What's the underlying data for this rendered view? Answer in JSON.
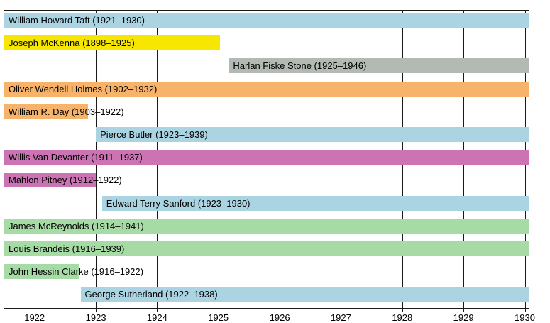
{
  "chart_data": {
    "type": "bar",
    "variant": "timeline-gantt",
    "title": "",
    "xlabel": "",
    "ylabel": "",
    "axis": {
      "xmin": 1921.513,
      "xmax": 1930.064,
      "ticks": [
        1922,
        1923,
        1924,
        1925,
        1926,
        1927,
        1928,
        1929,
        1930
      ],
      "grid": "vertical",
      "tick_label_color": "#000000",
      "line_color": "#1a1a1a"
    },
    "colors": {
      "blue": "#abd4e3",
      "yellow": "#f6e600",
      "gray": "#b3bab3",
      "orange": "#f7b369",
      "magenta": "#cc73b3",
      "green": "#a6dba6"
    },
    "rows": [
      {
        "label": "William Howard Taft (1921–1930)",
        "start": 1921.5,
        "end": 1930.09,
        "color": "blue"
      },
      {
        "label": "Joseph McKenna (1898–1925)",
        "start": 1898.07,
        "end": 1925.02,
        "color": "yellow"
      },
      {
        "label": "Harlan Fiske Stone (1925–1946)",
        "start": 1925.17,
        "end": 1946.3,
        "color": "gray"
      },
      {
        "label": "Oliver Wendell Holmes (1902–1932)",
        "start": 1902.92,
        "end": 1932.05,
        "color": "orange"
      },
      {
        "label": "William R. Day (1903–1922)",
        "start": 1903.17,
        "end": 1922.87,
        "color": "orange"
      },
      {
        "label": "Pierce Butler (1923–1939)",
        "start": 1923.0,
        "end": 1939.9,
        "color": "blue"
      },
      {
        "label": "Willis Van Devanter (1911–1937)",
        "start": 1911.0,
        "end": 1937.42,
        "color": "magenta"
      },
      {
        "label": "Mahlon Pitney (1912–1922)",
        "start": 1912.17,
        "end": 1923.0,
        "color": "magenta"
      },
      {
        "label": "Edward Terry Sanford (1923–1930)",
        "start": 1923.1,
        "end": 1930.18,
        "color": "blue"
      },
      {
        "label": "James McReynolds (1914–1941)",
        "start": 1914.67,
        "end": 1941.08,
        "color": "green"
      },
      {
        "label": "Louis Brandeis (1916–1939)",
        "start": 1916.42,
        "end": 1939.1,
        "color": "green"
      },
      {
        "label": "John Hessin Clarke (1916–1922)",
        "start": 1916.75,
        "end": 1922.72,
        "color": "green"
      },
      {
        "label": "George Sutherland (1922–1938)",
        "start": 1922.75,
        "end": 1938.05,
        "color": "blue"
      }
    ]
  }
}
